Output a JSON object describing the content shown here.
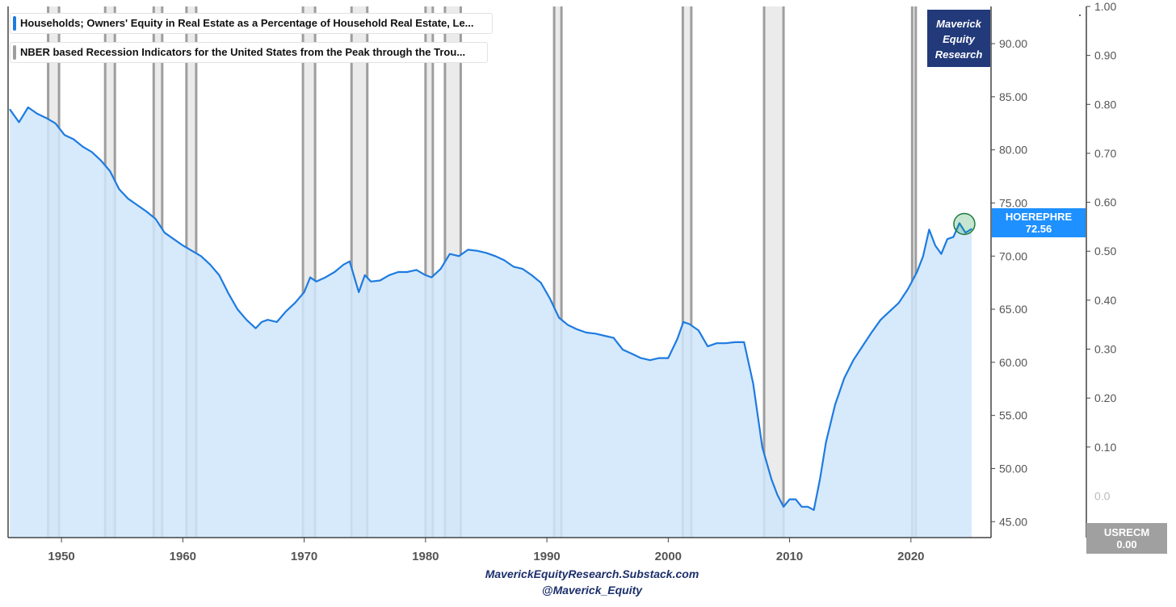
{
  "chart_data": {
    "type": "area",
    "legend": [
      {
        "label": "Households; Owners' Equity in Real Estate as a Percentage of Household Real Estate, Le...",
        "color": "#1e7be0"
      },
      {
        "label": "NBER based Recession Indicators for the United States from the Peak through the Trou...",
        "color": "#9e9e9e"
      }
    ],
    "x_ticks": [
      "1950",
      "1960",
      "1970",
      "1980",
      "1990",
      "2000",
      "2010",
      "2020"
    ],
    "xlim": [
      1945.6,
      2026.6
    ],
    "left_axis": {
      "ylim": [
        43.5,
        93.5
      ],
      "ticks": [
        "45.00",
        "50.00",
        "55.00",
        "60.00",
        "65.00",
        "70.00",
        "75.00",
        "80.00",
        "85.00",
        "90.00"
      ]
    },
    "right_axis": {
      "ylim": [
        -0.085,
        1.0
      ],
      "ticks": [
        "0.10",
        "0.20",
        "0.30",
        "0.40",
        "0.50",
        "0.60",
        "0.70",
        "0.80",
        "0.90",
        "1.00"
      ]
    },
    "recessions": [
      [
        1948.9,
        1949.8
      ],
      [
        1953.6,
        1954.4
      ],
      [
        1957.6,
        1958.3
      ],
      [
        1960.3,
        1961.1
      ],
      [
        1969.9,
        1970.9
      ],
      [
        1973.9,
        1975.2
      ],
      [
        1980.0,
        1980.6
      ],
      [
        1981.6,
        1982.9
      ],
      [
        1990.6,
        1991.2
      ],
      [
        2001.2,
        2001.9
      ],
      [
        2007.9,
        2009.5
      ],
      [
        2020.1,
        2020.4
      ]
    ],
    "series": [
      {
        "name": "HOEREPHRE",
        "x": [
          1945.75,
          1946.5,
          1947.25,
          1948.0,
          1948.75,
          1949.5,
          1950.25,
          1951.0,
          1951.75,
          1952.5,
          1953.25,
          1954.0,
          1954.75,
          1955.5,
          1956.25,
          1957.0,
          1957.75,
          1958.5,
          1959.25,
          1960.0,
          1960.75,
          1961.5,
          1962.25,
          1963.0,
          1963.75,
          1964.5,
          1965.25,
          1966.0,
          1966.5,
          1967.0,
          1967.75,
          1968.5,
          1969.25,
          1970.0,
          1970.5,
          1971.0,
          1971.75,
          1972.5,
          1973.25,
          1973.75,
          1974.5,
          1975.0,
          1975.5,
          1976.25,
          1977.0,
          1977.75,
          1978.5,
          1979.25,
          1980.0,
          1980.5,
          1981.25,
          1982.0,
          1982.75,
          1983.5,
          1984.25,
          1985.0,
          1985.75,
          1986.5,
          1987.25,
          1988.0,
          1988.75,
          1989.5,
          1990.25,
          1991.0,
          1991.75,
          1992.5,
          1993.25,
          1994.0,
          1994.75,
          1995.5,
          1996.25,
          1997.0,
          1997.75,
          1998.5,
          1999.25,
          2000.0,
          2000.75,
          2001.25,
          2001.75,
          2002.5,
          2003.25,
          2004.0,
          2004.75,
          2005.5,
          2006.25,
          2007.0,
          2007.75,
          2008.5,
          2009.0,
          2009.5,
          2010.0,
          2010.5,
          2011.0,
          2011.5,
          2012.0,
          2012.5,
          2013.0,
          2013.75,
          2014.5,
          2015.25,
          2016.0,
          2016.75,
          2017.5,
          2018.25,
          2019.0,
          2019.75,
          2020.5,
          2021.0,
          2021.5,
          2022.0,
          2022.5,
          2023.0,
          2023.5,
          2024.0,
          2024.5,
          2025.0
        ],
        "values": [
          83.8,
          82.6,
          84.0,
          83.4,
          83.0,
          82.5,
          81.4,
          81.0,
          80.3,
          79.8,
          79.0,
          78.0,
          76.3,
          75.4,
          74.8,
          74.2,
          73.5,
          72.2,
          71.6,
          71.0,
          70.5,
          70.0,
          69.2,
          68.2,
          66.5,
          65.0,
          64.0,
          63.2,
          63.8,
          64.0,
          63.8,
          64.8,
          65.6,
          66.6,
          68.0,
          67.6,
          68.0,
          68.5,
          69.2,
          69.5,
          66.6,
          68.2,
          67.6,
          67.7,
          68.2,
          68.5,
          68.5,
          68.7,
          68.2,
          68.0,
          68.8,
          70.2,
          70.0,
          70.6,
          70.5,
          70.3,
          70.0,
          69.6,
          69.0,
          68.8,
          68.2,
          67.5,
          66.0,
          64.2,
          63.5,
          63.1,
          62.8,
          62.7,
          62.5,
          62.3,
          61.2,
          60.8,
          60.4,
          60.2,
          60.4,
          60.4,
          62.2,
          63.8,
          63.6,
          63.0,
          61.5,
          61.8,
          61.8,
          61.9,
          61.9,
          58.0,
          52.0,
          49.0,
          47.5,
          46.4,
          47.1,
          47.1,
          46.4,
          46.4,
          46.1,
          49.0,
          52.5,
          56.0,
          58.5,
          60.2,
          61.5,
          62.8,
          64.0,
          64.8,
          65.6,
          66.9,
          68.5,
          70.0,
          72.5,
          71.0,
          70.2,
          71.6,
          71.8,
          73.1,
          72.2,
          72.56
        ]
      }
    ],
    "last_value_label": {
      "series": "HOEREPHRE",
      "value": "72.56"
    },
    "usrecm_label": {
      "series": "USRECM",
      "value": "0.00"
    },
    "right_axis_cut_label": "0.0"
  },
  "watermark": {
    "line1": "Maverick",
    "line2": "Equity",
    "line3": "Research"
  },
  "footer": {
    "line1": "MaverickEquityResearch.Substack.com",
    "line2": "@Maverick_Equity"
  },
  "colors": {
    "line": "#1e7be0",
    "fill": "#cfe6fb",
    "recession_fill": "#ebebeb",
    "recession_edge": "#9e9e9e",
    "brand": "#223a7a",
    "tag": "#1e90ff",
    "highlight_circle": "#1e9c4a"
  }
}
